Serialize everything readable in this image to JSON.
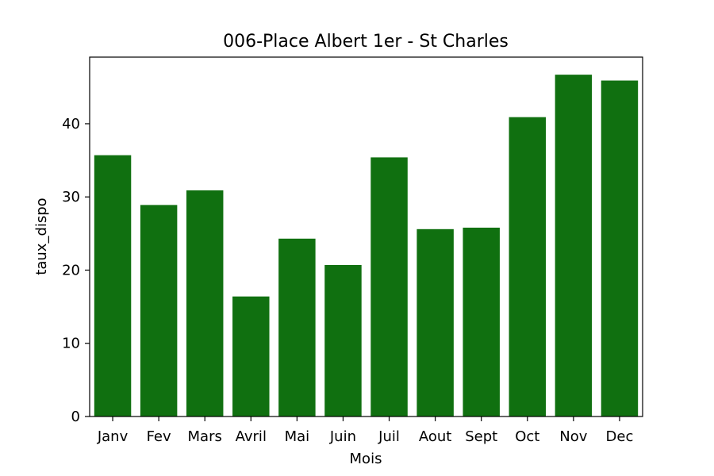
{
  "chart_data": {
    "type": "bar",
    "title": "006-Place Albert 1er - St Charles",
    "xlabel": "Mois",
    "ylabel": "taux_dispo",
    "categories": [
      "Janv",
      "Fev",
      "Mars",
      "Avril",
      "Mai",
      "Juin",
      "Juil",
      "Aout",
      "Sept",
      "Oct",
      "Nov",
      "Dec"
    ],
    "values": [
      35.7,
      28.9,
      30.9,
      16.4,
      24.3,
      20.7,
      35.4,
      25.6,
      25.8,
      40.9,
      46.7,
      45.9
    ],
    "ylim": [
      0,
      49.1
    ],
    "yticks": [
      0,
      10,
      20,
      30,
      40
    ],
    "bar_color": "#107010",
    "grid": false,
    "legend": "none"
  }
}
